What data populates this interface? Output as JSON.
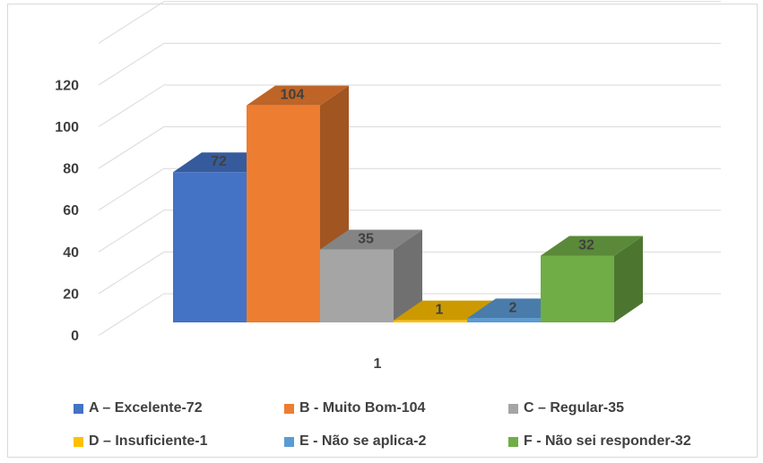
{
  "chart_data": {
    "type": "bar",
    "style": "3d-clustered-column",
    "categories": [
      "1"
    ],
    "series": [
      {
        "name": "A – Excelente-72",
        "values": [
          72
        ],
        "color": "#4472C4"
      },
      {
        "name": "B - Muito Bom-104",
        "values": [
          104
        ],
        "color": "#ED7D31"
      },
      {
        "name": "C – Regular-35",
        "values": [
          35
        ],
        "color": "#A5A5A5"
      },
      {
        "name": "D – Insuficiente-1",
        "values": [
          1
        ],
        "color": "#FFC000"
      },
      {
        "name": "E - Não se aplica-2",
        "values": [
          2
        ],
        "color": "#5B9BD5"
      },
      {
        "name": "F - Não sei responder-32",
        "values": [
          32
        ],
        "color": "#70AD47"
      }
    ],
    "ylim": [
      0,
      140
    ],
    "yticks": [
      "0",
      "20",
      "40",
      "60",
      "80",
      "100",
      "120"
    ],
    "grid": true,
    "legend_position": "bottom",
    "data_labels": [
      "72",
      "104",
      "35",
      "1",
      "2",
      "32"
    ]
  }
}
